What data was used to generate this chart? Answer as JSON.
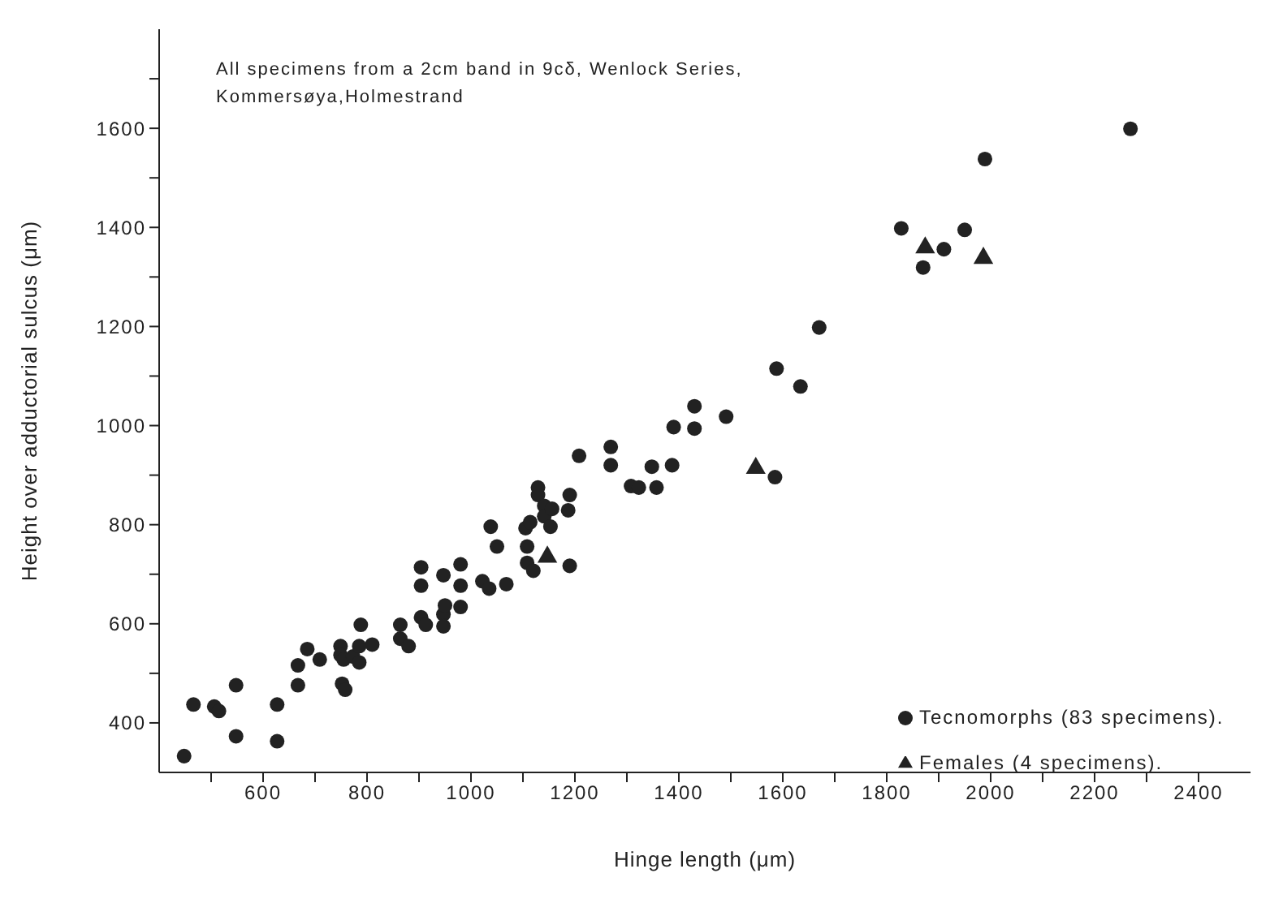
{
  "chart_data": {
    "type": "scatter",
    "xlabel": "Hinge length (μm)",
    "ylabel": "Height over adductorial sulcus (μm)",
    "annotations": [
      "All specimens from a 2cm band in 9cδ, Wenlock Series,\nKommersøya,Holmestrand"
    ],
    "xlim": [
      400,
      2500
    ],
    "ylim": [
      300,
      1800
    ],
    "xticks": [
      {
        "value": 500,
        "label": null
      },
      600,
      {
        "value": 700,
        "label": null
      },
      800,
      {
        "value": 900,
        "label": null
      },
      1000,
      {
        "value": 1100,
        "label": null
      },
      1200,
      {
        "value": 1300,
        "label": null
      },
      1400,
      {
        "value": 1500,
        "label": null
      },
      1600,
      {
        "value": 1700,
        "label": null
      },
      1800,
      {
        "value": 1900,
        "label": null
      },
      2000,
      {
        "value": 2100,
        "label": null
      },
      2200,
      {
        "value": 2300,
        "label": null
      },
      2400
    ],
    "yticks": [
      400,
      {
        "value": 500,
        "label": null
      },
      600,
      {
        "value": 700,
        "label": null
      },
      800,
      {
        "value": 900,
        "label": null
      },
      1000,
      {
        "value": 1100,
        "label": null
      },
      1200,
      {
        "value": 1300,
        "label": null
      },
      1400,
      {
        "value": 1500,
        "label": null
      },
      1600,
      {
        "value": 1700,
        "label": null
      }
    ],
    "grid": false,
    "legend": "bottom right",
    "series": [
      {
        "name": "Tecnomorphs (83 specimens).",
        "color": "#222222",
        "marker": "circle",
        "x": [
          448,
          466,
          506,
          515,
          548,
          548,
          627,
          627,
          667,
          667,
          685,
          709,
          749,
          749,
          755,
          752,
          758,
          773,
          785,
          788,
          785,
          810,
          864,
          864,
          880,
          904,
          904,
          904,
          913,
          947,
          947,
          947,
          950,
          980,
          980,
          980,
          1022,
          1035,
          1068,
          1038,
          1050,
          1108,
          1105,
          1114,
          1108,
          1120,
          1129,
          1129,
          1141,
          1141,
          1156,
          1153,
          1190,
          1190,
          1187,
          1208,
          1269,
          1269,
          1308,
          1323,
          1348,
          1357,
          1387,
          1390,
          1430,
          1430,
          1491,
          1585,
          1588,
          1634,
          1670,
          1870,
          1910,
          1950,
          1828,
          1989,
          2269
        ],
        "values": [
          333,
          437,
          433,
          424,
          476,
          373,
          437,
          363,
          476,
          516,
          549,
          528,
          555,
          537,
          528,
          479,
          467,
          534,
          522,
          598,
          555,
          558,
          598,
          570,
          555,
          714,
          677,
          613,
          598,
          698,
          619,
          595,
          637,
          720,
          677,
          634,
          686,
          671,
          680,
          796,
          756,
          756,
          793,
          805,
          723,
          707,
          875,
          860,
          838,
          817,
          832,
          796,
          717,
          860,
          829,
          939,
          957,
          920,
          878,
          875,
          917,
          875,
          920,
          997,
          1039,
          994,
          1018,
          896,
          1115,
          1079,
          1198,
          1319,
          1356,
          1395,
          1398,
          1538,
          1599
        ]
      },
      {
        "name": "Females (4 specimens).",
        "color": "#222222",
        "marker": "triangle",
        "x": [
          1147,
          1548,
          1874,
          1986
        ],
        "values": [
          735,
          914,
          1359,
          1338
        ]
      }
    ]
  }
}
